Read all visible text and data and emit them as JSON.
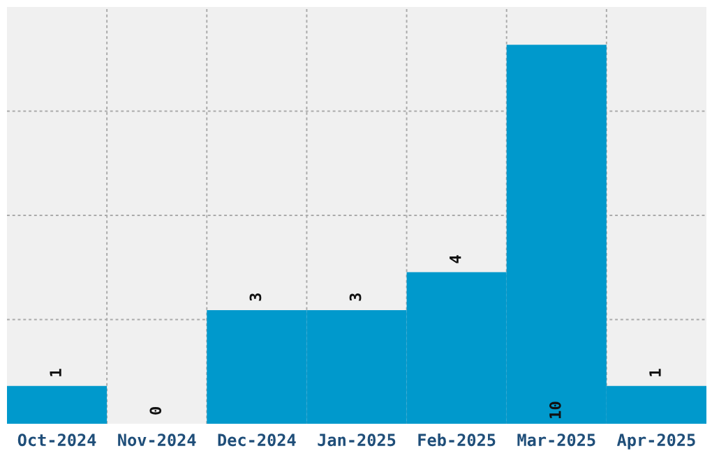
{
  "chart_data": {
    "type": "bar",
    "categories": [
      "Oct-2024",
      "Nov-2024",
      "Dec-2024",
      "Jan-2025",
      "Feb-2025",
      "Mar-2025",
      "Apr-2025"
    ],
    "values": [
      1,
      0,
      3,
      3,
      4,
      10,
      1
    ],
    "color": "#0099cc",
    "data_labels": true,
    "ylim": [
      0,
      11
    ],
    "yticks": [
      {
        "value": 2.75,
        "label": null
      },
      {
        "value": 5.5,
        "label": null
      },
      {
        "value": 8.25,
        "label": null
      }
    ],
    "grid": true,
    "tick_labels": "x"
  }
}
